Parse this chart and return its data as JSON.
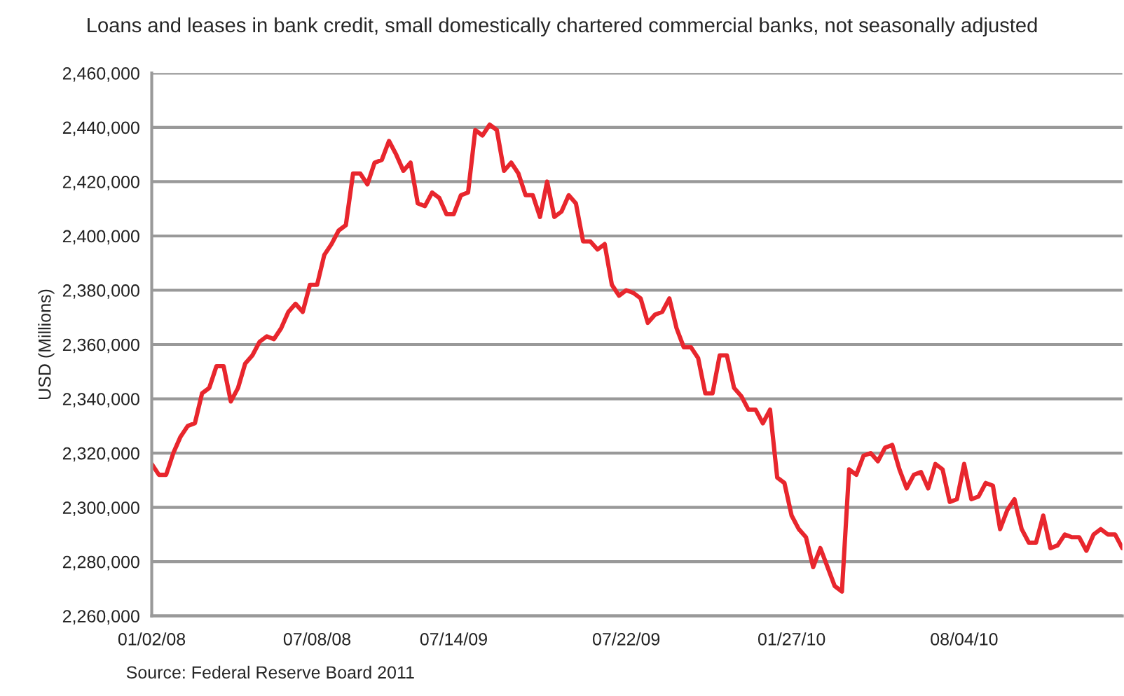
{
  "chart_data": {
    "type": "line",
    "title": "Loans and leases in bank credit, small domestically chartered commercial banks, not seasonally adjusted",
    "ylabel": "USD (Millions)",
    "annotations": [
      "Source: Federal Reserve Board 2011"
    ],
    "categories": [
      "01/02/08",
      null,
      null,
      null,
      null,
      null,
      null,
      null,
      null,
      null,
      null,
      null,
      null,
      null,
      null,
      null,
      null,
      null,
      null,
      null,
      null,
      null,
      null,
      "07/08/08",
      null,
      null,
      null,
      null,
      null,
      null,
      null,
      null,
      null,
      null,
      null,
      null,
      null,
      null,
      null,
      null,
      null,
      null,
      "07/14/09",
      null,
      null,
      null,
      null,
      null,
      null,
      null,
      null,
      null,
      null,
      null,
      null,
      null,
      null,
      null,
      null,
      null,
      null,
      null,
      null,
      null,
      null,
      null,
      "07/22/09",
      null,
      null,
      null,
      null,
      null,
      null,
      null,
      null,
      null,
      null,
      null,
      null,
      null,
      null,
      null,
      null,
      null,
      null,
      null,
      null,
      null,
      null,
      "01/27/10",
      null,
      null,
      null,
      null,
      null,
      null,
      null,
      null,
      null,
      null,
      null,
      null,
      null,
      null,
      null,
      null,
      null,
      null,
      null,
      null,
      null,
      null,
      null,
      "08/04/10",
      null,
      null,
      null,
      null,
      null,
      null,
      null,
      null,
      null,
      null,
      null,
      null,
      null,
      null,
      null,
      null,
      null,
      null,
      null,
      null,
      null,
      null
    ],
    "series": [
      {
        "color": "#e8262d",
        "values": [
          2316000,
          2312000,
          2312000,
          2320000,
          2326000,
          2330000,
          2331000,
          2342000,
          2344000,
          2352000,
          2352000,
          2339000,
          2344000,
          2353000,
          2356000,
          2361000,
          2363000,
          2362000,
          2366000,
          2372000,
          2375000,
          2372000,
          2382000,
          2382000,
          2393000,
          2397000,
          2402000,
          2404000,
          2423000,
          2423000,
          2419000,
          2427000,
          2428000,
          2435000,
          2430000,
          2424000,
          2427000,
          2412000,
          2411000,
          2416000,
          2414000,
          2408000,
          2408000,
          2415000,
          2416000,
          2439000,
          2437000,
          2441000,
          2439000,
          2424000,
          2427000,
          2423000,
          2415000,
          2415000,
          2407000,
          2420000,
          2407000,
          2409000,
          2415000,
          2412000,
          2398000,
          2398000,
          2395000,
          2397000,
          2382000,
          2378000,
          2380000,
          2379000,
          2377000,
          2368000,
          2371000,
          2372000,
          2377000,
          2366000,
          2359000,
          2359000,
          2355000,
          2342000,
          2342000,
          2356000,
          2356000,
          2344000,
          2341000,
          2336000,
          2336000,
          2331000,
          2336000,
          2311000,
          2309000,
          2297000,
          2292000,
          2289000,
          2278000,
          2285000,
          2278000,
          2271000,
          2269000,
          2314000,
          2312000,
          2319000,
          2320000,
          2317000,
          2322000,
          2323000,
          2314000,
          2307000,
          2312000,
          2313000,
          2307000,
          2316000,
          2314000,
          2302000,
          2303000,
          2316000,
          2303000,
          2304000,
          2309000,
          2308000,
          2292000,
          2299000,
          2303000,
          2292000,
          2287000,
          2287000,
          2297000,
          2285000,
          2286000,
          2290000,
          2289000,
          2289000,
          2284000,
          2290000,
          2292000,
          2290000,
          2290000,
          2285000
        ]
      }
    ],
    "ylim": [
      2260000,
      2460000
    ],
    "yticks": [
      {
        "value": 2260000,
        "label": "2,260,000"
      },
      {
        "value": 2280000,
        "label": "2,280,000"
      },
      {
        "value": 2300000,
        "label": "2,300,000"
      },
      {
        "value": 2320000,
        "label": "2,320,000"
      },
      {
        "value": 2340000,
        "label": "2,340,000"
      },
      {
        "value": 2360000,
        "label": "2,360,000"
      },
      {
        "value": 2380000,
        "label": "2,380,000"
      },
      {
        "value": 2400000,
        "label": "2,400,000"
      },
      {
        "value": 2420000,
        "label": "2,420,000"
      },
      {
        "value": 2440000,
        "label": "2,440,000"
      },
      {
        "value": 2460000,
        "label": "2,460,000"
      }
    ],
    "grid": "y"
  }
}
